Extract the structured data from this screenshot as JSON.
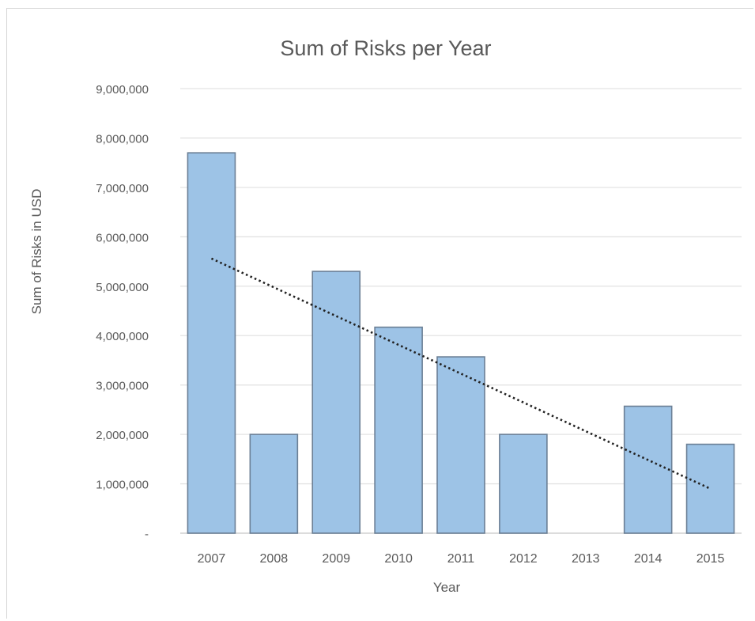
{
  "chart_data": {
    "type": "bar",
    "title": "Sum of Risks per Year",
    "xlabel": "Year",
    "ylabel": "Sum of Risks in USD",
    "categories": [
      "2007",
      "2008",
      "2009",
      "2010",
      "2011",
      "2012",
      "2013",
      "2014",
      "2015"
    ],
    "values": [
      7700000,
      2000000,
      5300000,
      4170000,
      3570000,
      2000000,
      0,
      2570000,
      1800000
    ],
    "ylim": [
      0,
      9000000
    ],
    "yticks": [
      0,
      1000000,
      2000000,
      3000000,
      4000000,
      5000000,
      6000000,
      7000000,
      8000000,
      9000000
    ],
    "ytick_labels": [
      "-",
      "1,000,000",
      "2,000,000",
      "3,000,000",
      "4,000,000",
      "5,000,000",
      "6,000,000",
      "7,000,000",
      "8,000,000",
      "9,000,000"
    ],
    "grid": true,
    "legend": "none",
    "trendline": {
      "type": "linear",
      "style": "dotted",
      "start": 5560000,
      "end": 900000
    },
    "colors": {
      "bar_fill": "#9dc3e6",
      "bar_stroke": "#6b7f95",
      "grid": "#e3e3e3",
      "text": "#595959",
      "trend": "#222222"
    }
  }
}
